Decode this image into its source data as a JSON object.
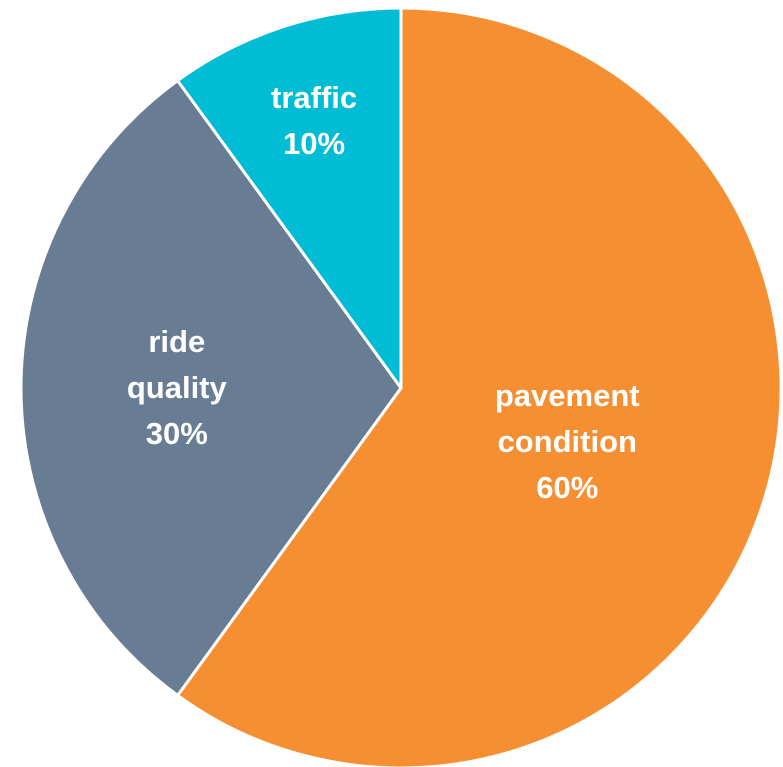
{
  "chart_data": {
    "type": "pie",
    "categories": [
      "pavement condition",
      "ride quality",
      "traffic"
    ],
    "values": [
      60,
      30,
      10
    ],
    "value_labels": [
      "60%",
      "30%",
      "10%"
    ],
    "colors": [
      "#f58f32",
      "#687d93",
      "#00bcd4"
    ]
  }
}
